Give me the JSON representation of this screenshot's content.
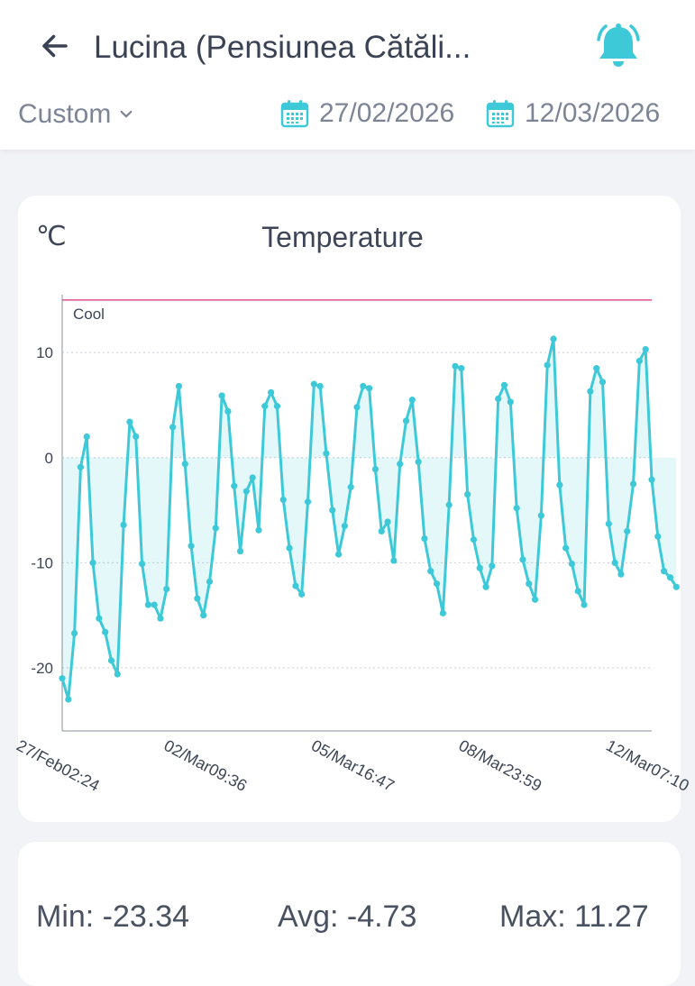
{
  "header": {
    "title": "Lucina (Pensiunea Cătăli...",
    "back_icon": "arrow-left-icon",
    "bell_icon": "bell-icon"
  },
  "filters": {
    "range_label": "Custom",
    "start_date": "27/02/2026",
    "end_date": "12/03/2026",
    "calendar_icon": "calendar-icon"
  },
  "colors": {
    "accent": "#3ec9d8",
    "threshold": "#e0508a",
    "text": "#3d4556",
    "muted": "#7c8496"
  },
  "chart": {
    "unit": "℃",
    "title": "Temperature"
  },
  "chart_data": {
    "type": "line",
    "title": "Temperature",
    "ylabel": "℃",
    "ylim": [
      -26,
      15.5
    ],
    "yticks": [
      -20,
      -10,
      0,
      10
    ],
    "grid": true,
    "threshold": {
      "label": "Cool",
      "value": 15
    },
    "xticks": [
      {
        "label": "27/Feb02:24",
        "x": 0
      },
      {
        "label": "02/Mar09:36",
        "x": 79.2
      },
      {
        "label": "05/Mar16:47",
        "x": 158.4
      },
      {
        "label": "08/Mar23:59",
        "x": 237.6
      },
      {
        "label": "12/Mar07:10",
        "x": 316.8
      }
    ],
    "xlim": [
      0,
      316.8
    ],
    "series": [
      {
        "values": [
          [
            0,
            -21
          ],
          [
            3.3,
            -23
          ],
          [
            6.6,
            -16.7
          ],
          [
            9.9,
            -0.9
          ],
          [
            13.2,
            2
          ],
          [
            16.5,
            -10
          ],
          [
            19.8,
            -15.3
          ],
          [
            23.1,
            -16.6
          ],
          [
            26.4,
            -19.3
          ],
          [
            29.7,
            -20.6
          ],
          [
            33,
            -6.4
          ],
          [
            36.3,
            3.4
          ],
          [
            39.6,
            2
          ],
          [
            42.9,
            -10.1
          ],
          [
            46.2,
            -14
          ],
          [
            49.5,
            -14
          ],
          [
            52.8,
            -15.3
          ],
          [
            56.1,
            -12.5
          ],
          [
            59.4,
            2.9
          ],
          [
            62.7,
            6.8
          ],
          [
            66,
            -0.6
          ],
          [
            69.3,
            -8.4
          ],
          [
            72.6,
            -13.4
          ],
          [
            75.9,
            -15
          ],
          [
            79.2,
            -11.8
          ],
          [
            82.5,
            -6.7
          ],
          [
            85.8,
            5.9
          ],
          [
            89.1,
            4.4
          ],
          [
            92.4,
            -2.7
          ],
          [
            95.7,
            -8.9
          ],
          [
            99,
            -3.2
          ],
          [
            102.3,
            -1.9
          ],
          [
            105.6,
            -6.9
          ],
          [
            108.9,
            4.9
          ],
          [
            112.2,
            6.2
          ],
          [
            115.5,
            4.9
          ],
          [
            118.8,
            -4
          ],
          [
            122.1,
            -8.6
          ],
          [
            125.4,
            -12.2
          ],
          [
            128.7,
            -13
          ],
          [
            132,
            -4.2
          ],
          [
            135.3,
            7
          ],
          [
            138.6,
            6.8
          ],
          [
            141.9,
            0.4
          ],
          [
            145.2,
            -5
          ],
          [
            148.5,
            -9.2
          ],
          [
            151.8,
            -6.5
          ],
          [
            155.1,
            -2.8
          ],
          [
            158.4,
            4.8
          ],
          [
            161.7,
            6.8
          ],
          [
            165,
            6.6
          ],
          [
            168.3,
            -1.1
          ],
          [
            171.6,
            -7
          ],
          [
            174.9,
            -6.1
          ],
          [
            178.2,
            -9.8
          ],
          [
            181.5,
            -0.6
          ],
          [
            184.8,
            3.5
          ],
          [
            188.1,
            5.5
          ],
          [
            191.4,
            -0.4
          ],
          [
            194.7,
            -7.7
          ],
          [
            198,
            -10.8
          ],
          [
            201.3,
            -12
          ],
          [
            204.6,
            -14.8
          ],
          [
            207.9,
            -4.5
          ],
          [
            211.2,
            8.7
          ],
          [
            214.5,
            8.5
          ],
          [
            217.8,
            -3.5
          ],
          [
            221.1,
            -7.8
          ],
          [
            224.4,
            -10.5
          ],
          [
            227.7,
            -12.3
          ],
          [
            231,
            -10.3
          ],
          [
            234.3,
            5.6
          ],
          [
            237.6,
            6.9
          ],
          [
            240.9,
            5.3
          ],
          [
            244.2,
            -4.8
          ],
          [
            247.5,
            -9.7
          ],
          [
            250.8,
            -12
          ],
          [
            254.1,
            -13.5
          ],
          [
            257.4,
            -5.5
          ],
          [
            260.7,
            8.8
          ],
          [
            264,
            11.3
          ],
          [
            267.3,
            -2.6
          ],
          [
            270.6,
            -8.6
          ],
          [
            273.9,
            -10.1
          ],
          [
            277.2,
            -12.7
          ],
          [
            280.5,
            -14
          ],
          [
            283.8,
            6.3
          ],
          [
            287.1,
            8.5
          ],
          [
            290.4,
            7.2
          ],
          [
            293.7,
            -6.3
          ],
          [
            297,
            -10
          ],
          [
            300.3,
            -11.1
          ],
          [
            303.6,
            -7
          ],
          [
            306.9,
            -2.5
          ],
          [
            310.2,
            9.2
          ],
          [
            313.5,
            10.3
          ],
          [
            316.8,
            -2.1
          ],
          [
            320.1,
            -7.5
          ],
          [
            323.4,
            -10.8
          ],
          [
            326.7,
            -11.4
          ],
          [
            330,
            -12.3
          ]
        ]
      }
    ]
  },
  "stats": {
    "min": "Min: -23.34",
    "avg": "Avg: -4.73",
    "max": "Max: 11.27"
  }
}
